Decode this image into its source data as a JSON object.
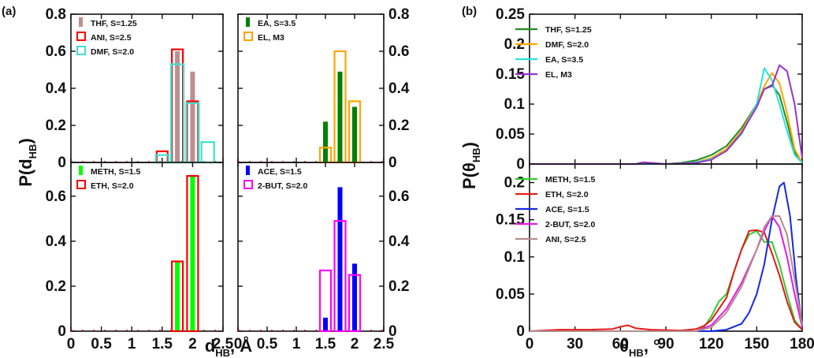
{
  "panel_labels": {
    "a": "(a)",
    "b": "(b)"
  },
  "chart_data": [
    {
      "id": "a-top-left",
      "type": "bar",
      "x": [
        1.5,
        1.75,
        2.0,
        2.25
      ],
      "series": [
        {
          "name": "THF, S=1.25",
          "color": "#bc8f8f",
          "style": "filled",
          "values": [
            0.0,
            0.6,
            0.49,
            0.0
          ]
        },
        {
          "name": "ANI, S=2.5",
          "color": "#ff0000",
          "style": "outline",
          "values": [
            0.06,
            0.61,
            0.33,
            0.0
          ]
        },
        {
          "name": "DMF, S=2.0",
          "color": "#40e0d0",
          "style": "outline",
          "values": [
            0.04,
            0.53,
            0.32,
            0.11
          ]
        }
      ],
      "xlim": [
        0,
        2.5
      ],
      "ylim": [
        0,
        0.8
      ],
      "yticks": [
        "0",
        "0.2",
        "0.4",
        "0.6",
        "0.8"
      ]
    },
    {
      "id": "a-top-right",
      "type": "bar",
      "x": [
        1.5,
        1.75,
        2.0
      ],
      "series": [
        {
          "name": "EA, S=3.5",
          "color": "#008000",
          "style": "filled",
          "values": [
            0.22,
            0.49,
            0.3
          ]
        },
        {
          "name": "EL, M3",
          "color": "#ffa500",
          "style": "outline",
          "values": [
            0.08,
            0.6,
            0.33
          ]
        }
      ],
      "xlim": [
        0,
        2.5
      ],
      "ylim": [
        0,
        0.8
      ],
      "yticks": [
        "0",
        "0.2",
        "0.4",
        "0.6",
        "0.8"
      ]
    },
    {
      "id": "a-bottom-left",
      "type": "bar",
      "x": [
        1.75,
        2.0
      ],
      "series": [
        {
          "name": "METH, S=1.5",
          "color": "#00ff00",
          "style": "filled",
          "values": [
            0.31,
            0.69
          ]
        },
        {
          "name": "ETH, S=2.0",
          "color": "#ff0000",
          "style": "outline",
          "values": [
            0.31,
            0.69
          ]
        }
      ],
      "xlim": [
        0,
        2.5
      ],
      "ylim": [
        0,
        0.75
      ],
      "xticks": [
        "0",
        "0.5",
        "1",
        "1.5",
        "2",
        "2.5"
      ],
      "yticks": [
        "0",
        "0.2",
        "0.4",
        "0.6"
      ]
    },
    {
      "id": "a-bottom-right",
      "type": "bar",
      "x": [
        1.5,
        1.75,
        2.0
      ],
      "series": [
        {
          "name": "ACE, S=1.5",
          "color": "#0000ff",
          "style": "filled",
          "values": [
            0.06,
            0.64,
            0.3
          ]
        },
        {
          "name": "2-BUT, S=2.0",
          "color": "#ff00ff",
          "style": "outline",
          "values": [
            0.27,
            0.49,
            0.25
          ]
        }
      ],
      "xlim": [
        0,
        2.5
      ],
      "ylim": [
        0,
        0.75
      ],
      "xticks": [
        "0",
        "0.5",
        "1",
        "1.5",
        "2",
        "2.5"
      ],
      "yticks": [
        "0",
        "0.2",
        "0.4",
        "0.6"
      ]
    },
    {
      "id": "b-top",
      "type": "line",
      "series": [
        {
          "name": "THF, S=1.25",
          "color": "#1e8c1e",
          "points": [
            [
              0,
              0
            ],
            [
              90,
              0
            ],
            [
              100,
              0.002
            ],
            [
              110,
              0.006
            ],
            [
              120,
              0.015
            ],
            [
              130,
              0.03
            ],
            [
              140,
              0.06
            ],
            [
              150,
              0.1
            ],
            [
              155,
              0.125
            ],
            [
              160,
              0.132
            ],
            [
              165,
              0.115
            ],
            [
              170,
              0.07
            ],
            [
              175,
              0.02
            ],
            [
              180,
              0.002
            ]
          ]
        },
        {
          "name": "DMF, S=2.0",
          "color": "#ffa500",
          "points": [
            [
              0,
              0
            ],
            [
              90,
              0
            ],
            [
              100,
              0.001
            ],
            [
              110,
              0.003
            ],
            [
              120,
              0.01
            ],
            [
              130,
              0.025
            ],
            [
              140,
              0.055
            ],
            [
              150,
              0.1
            ],
            [
              155,
              0.13
            ],
            [
              160,
              0.152
            ],
            [
              165,
              0.135
            ],
            [
              170,
              0.085
            ],
            [
              175,
              0.025
            ],
            [
              180,
              0.002
            ]
          ]
        },
        {
          "name": "EA, S=3.5",
          "color": "#28e1e1",
          "points": [
            [
              0,
              0
            ],
            [
              90,
              0
            ],
            [
              100,
              0.001
            ],
            [
              110,
              0.003
            ],
            [
              120,
              0.008
            ],
            [
              130,
              0.022
            ],
            [
              140,
              0.05
            ],
            [
              150,
              0.1
            ],
            [
              155,
              0.16
            ],
            [
              160,
              0.14
            ],
            [
              165,
              0.1
            ],
            [
              170,
              0.055
            ],
            [
              175,
              0.015
            ],
            [
              180,
              0.002
            ]
          ]
        },
        {
          "name": "EL, M3",
          "color": "#9932cc",
          "points": [
            [
              0,
              0
            ],
            [
              70,
              0
            ],
            [
              75,
              0.003
            ],
            [
              80,
              0.002
            ],
            [
              90,
              0
            ],
            [
              100,
              0.001
            ],
            [
              110,
              0.002
            ],
            [
              120,
              0.007
            ],
            [
              130,
              0.022
            ],
            [
              140,
              0.052
            ],
            [
              150,
              0.095
            ],
            [
              155,
              0.125
            ],
            [
              160,
              0.13
            ],
            [
              165,
              0.165
            ],
            [
              170,
              0.155
            ],
            [
              175,
              0.1
            ],
            [
              180,
              0.01
            ]
          ]
        }
      ],
      "xlim": [
        0,
        180
      ],
      "ylim": [
        0,
        0.25
      ],
      "yticks": [
        "0",
        "0.05",
        "0.1",
        "0.15",
        "0.2",
        "0.25"
      ]
    },
    {
      "id": "b-bottom",
      "type": "line",
      "series": [
        {
          "name": "METH, S=1.5",
          "color": "#32cd32",
          "points": [
            [
              0,
              0
            ],
            [
              110,
              0
            ],
            [
              115,
              0.005
            ],
            [
              120,
              0.02
            ],
            [
              125,
              0.04
            ],
            [
              130,
              0.05
            ],
            [
              135,
              0.08
            ],
            [
              140,
              0.11
            ],
            [
              145,
              0.13
            ],
            [
              150,
              0.135
            ],
            [
              155,
              0.12
            ],
            [
              160,
              0.12
            ],
            [
              165,
              0.09
            ],
            [
              170,
              0.05
            ],
            [
              175,
              0.015
            ],
            [
              180,
              0.002
            ]
          ]
        },
        {
          "name": "ETH, S=2.0",
          "color": "#e61919",
          "points": [
            [
              0,
              0
            ],
            [
              20,
              0.002
            ],
            [
              40,
              0.002
            ],
            [
              55,
              0.003
            ],
            [
              60,
              0.006
            ],
            [
              65,
              0.008
            ],
            [
              70,
              0.004
            ],
            [
              80,
              0.002
            ],
            [
              100,
              0.001
            ],
            [
              110,
              0.003
            ],
            [
              115,
              0.007
            ],
            [
              120,
              0.015
            ],
            [
              125,
              0.03
            ],
            [
              130,
              0.045
            ],
            [
              135,
              0.08
            ],
            [
              140,
              0.11
            ],
            [
              145,
              0.135
            ],
            [
              150,
              0.136
            ],
            [
              155,
              0.133
            ],
            [
              160,
              0.105
            ],
            [
              165,
              0.075
            ],
            [
              170,
              0.04
            ],
            [
              175,
              0.012
            ],
            [
              180,
              0.002
            ]
          ]
        },
        {
          "name": "ACE, S=1.5",
          "color": "#1428e6",
          "points": [
            [
              0,
              0
            ],
            [
              120,
              0
            ],
            [
              130,
              0.002
            ],
            [
              140,
              0.01
            ],
            [
              145,
              0.025
            ],
            [
              150,
              0.05
            ],
            [
              155,
              0.09
            ],
            [
              160,
              0.15
            ],
            [
              165,
              0.195
            ],
            [
              168,
              0.2
            ],
            [
              172,
              0.155
            ],
            [
              176,
              0.07
            ],
            [
              180,
              0.005
            ]
          ]
        },
        {
          "name": "2-BUT, S=2.0",
          "color": "#e619e6",
          "points": [
            [
              0,
              0
            ],
            [
              110,
              0
            ],
            [
              120,
              0.008
            ],
            [
              130,
              0.03
            ],
            [
              140,
              0.065
            ],
            [
              150,
              0.11
            ],
            [
              155,
              0.135
            ],
            [
              160,
              0.155
            ],
            [
              165,
              0.14
            ],
            [
              170,
              0.1
            ],
            [
              175,
              0.05
            ],
            [
              180,
              0.005
            ]
          ]
        },
        {
          "name": "ANI, S=2.5",
          "color": "#b48c8c",
          "points": [
            [
              0,
              0
            ],
            [
              110,
              0
            ],
            [
              120,
              0.005
            ],
            [
              130,
              0.025
            ],
            [
              140,
              0.06
            ],
            [
              150,
              0.11
            ],
            [
              155,
              0.14
            ],
            [
              160,
              0.155
            ],
            [
              165,
              0.155
            ],
            [
              170,
              0.13
            ],
            [
              175,
              0.07
            ],
            [
              180,
              0.008
            ]
          ]
        }
      ],
      "xlim": [
        0,
        180
      ],
      "ylim": [
        0,
        0.225
      ],
      "xticks": [
        "0",
        "30",
        "60",
        "90",
        "120",
        "150",
        "180"
      ],
      "yticks": [
        "0",
        "0.05",
        "0.1",
        "0.15",
        "0.2"
      ]
    }
  ],
  "axis_text": {
    "a_ylabel_main": "P(d",
    "a_ylabel_sub": "HB",
    "a_ylabel_end": ")",
    "a_xlabel_main": "d",
    "a_xlabel_sub": "HB",
    "a_xlabel_end": ", Å",
    "b_ylabel_main": "P(θ",
    "b_ylabel_sub": "HB",
    "b_ylabel_end": ")",
    "b_xlabel_main": "θ",
    "b_xlabel_sub": "HB",
    "b_xlabel_end": ", °"
  }
}
